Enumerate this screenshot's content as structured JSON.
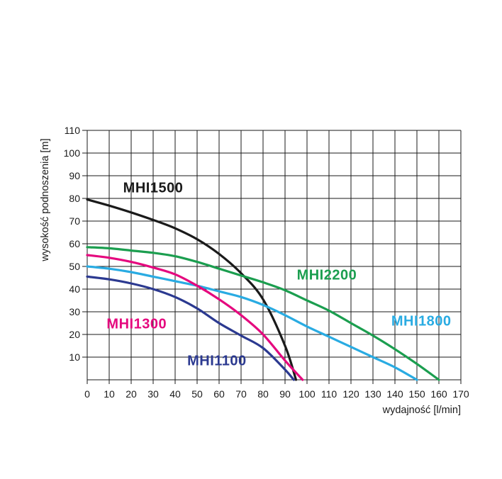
{
  "page_background": "#ffffff",
  "chart_data": {
    "type": "line",
    "title": "",
    "xlabel": "wydajność [l/min]",
    "ylabel": "wysokość podnoszenia [m]",
    "xlim": [
      0,
      170
    ],
    "ylim": [
      0,
      110
    ],
    "x_ticks": [
      0,
      10,
      20,
      30,
      40,
      50,
      60,
      70,
      80,
      90,
      100,
      110,
      120,
      130,
      140,
      150,
      160,
      170
    ],
    "y_ticks": [
      10,
      20,
      30,
      40,
      50,
      60,
      70,
      80,
      90,
      100,
      110
    ],
    "grid": true,
    "grid_color": "#1a1a1a",
    "legend_position": "inline-annotations",
    "series": [
      {
        "name": "MHI1500",
        "color": "#1a1a1a",
        "label_at": [
          30,
          84.5
        ],
        "points": [
          [
            0,
            79.5
          ],
          [
            10,
            76.8
          ],
          [
            20,
            73.8
          ],
          [
            30,
            70.5
          ],
          [
            40,
            66.8
          ],
          [
            50,
            62
          ],
          [
            60,
            55.5
          ],
          [
            70,
            47
          ],
          [
            80,
            35.5
          ],
          [
            90,
            15
          ],
          [
            95,
            0
          ]
        ]
      },
      {
        "name": "MHI2200",
        "color": "#1b9e4f",
        "label_at": [
          109,
          46
        ],
        "points": [
          [
            0,
            58.5
          ],
          [
            10,
            58
          ],
          [
            20,
            57
          ],
          [
            30,
            56
          ],
          [
            40,
            54.5
          ],
          [
            50,
            52
          ],
          [
            60,
            49
          ],
          [
            70,
            46
          ],
          [
            80,
            43
          ],
          [
            90,
            39.5
          ],
          [
            100,
            35
          ],
          [
            110,
            30.5
          ],
          [
            120,
            25
          ],
          [
            130,
            19.5
          ],
          [
            140,
            13.5
          ],
          [
            150,
            7
          ],
          [
            160,
            0
          ]
        ]
      },
      {
        "name": "MHI1800",
        "color": "#29abe2",
        "label_at": [
          152,
          25.5
        ],
        "points": [
          [
            0,
            50
          ],
          [
            10,
            49
          ],
          [
            20,
            47.5
          ],
          [
            30,
            45.5
          ],
          [
            40,
            43.5
          ],
          [
            50,
            41.5
          ],
          [
            60,
            39
          ],
          [
            70,
            36.5
          ],
          [
            80,
            33
          ],
          [
            90,
            28.5
          ],
          [
            100,
            23.5
          ],
          [
            110,
            19
          ],
          [
            120,
            14.5
          ],
          [
            130,
            10
          ],
          [
            140,
            5.5
          ],
          [
            150,
            0
          ]
        ]
      },
      {
        "name": "MHI1300",
        "color": "#e5087e",
        "label_at": [
          22.5,
          24.5
        ],
        "points": [
          [
            0,
            55
          ],
          [
            10,
            53.8
          ],
          [
            20,
            52
          ],
          [
            30,
            49.5
          ],
          [
            40,
            46.5
          ],
          [
            50,
            41.5
          ],
          [
            60,
            35.5
          ],
          [
            70,
            28.5
          ],
          [
            80,
            20
          ],
          [
            90,
            8.5
          ],
          [
            98,
            0
          ]
        ]
      },
      {
        "name": "MHI1100",
        "color": "#2b3990",
        "label_at": [
          59,
          8
        ],
        "points": [
          [
            0,
            45.5
          ],
          [
            10,
            44.3
          ],
          [
            20,
            42.5
          ],
          [
            30,
            40
          ],
          [
            40,
            36.5
          ],
          [
            50,
            31.5
          ],
          [
            60,
            25
          ],
          [
            70,
            19.5
          ],
          [
            80,
            14
          ],
          [
            90,
            4.5
          ],
          [
            94,
            0
          ]
        ]
      }
    ]
  }
}
